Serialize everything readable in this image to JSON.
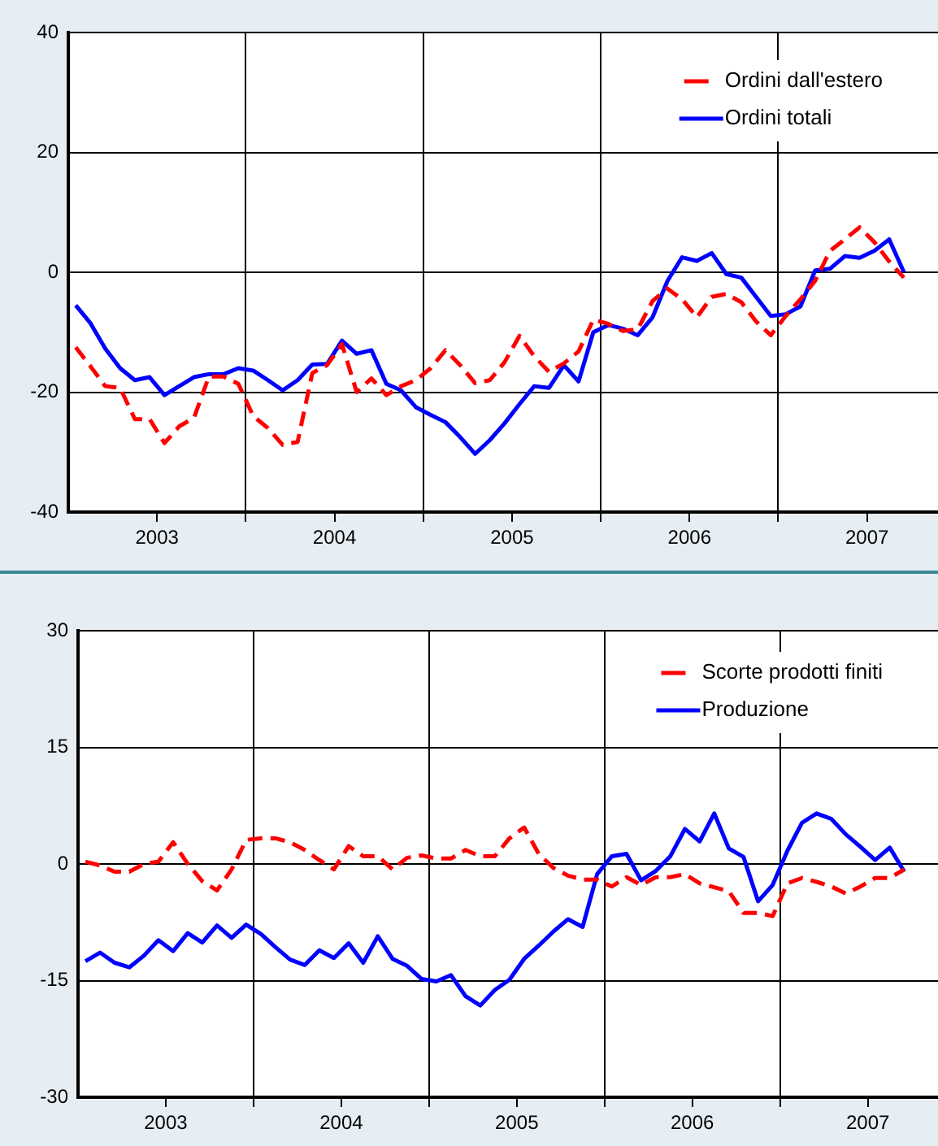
{
  "chart_data": [
    {
      "type": "line",
      "x": [
        2003.042,
        2003.125,
        2003.208,
        2003.292,
        2003.375,
        2003.458,
        2003.542,
        2003.625,
        2003.708,
        2003.792,
        2003.875,
        2003.958,
        2004.042,
        2004.125,
        2004.208,
        2004.292,
        2004.375,
        2004.458,
        2004.542,
        2004.625,
        2004.708,
        2004.792,
        2004.875,
        2004.958,
        2005.042,
        2005.125,
        2005.208,
        2005.292,
        2005.375,
        2005.458,
        2005.542,
        2005.625,
        2005.708,
        2005.792,
        2005.875,
        2005.958,
        2006.042,
        2006.125,
        2006.208,
        2006.292,
        2006.375,
        2006.458,
        2006.542,
        2006.625,
        2006.708,
        2006.792,
        2006.875,
        2006.958,
        2007.042,
        2007.125,
        2007.208,
        2007.292,
        2007.375,
        2007.458,
        2007.542,
        2007.625,
        2007.708
      ],
      "series": [
        {
          "name": "Ordini dall'estero",
          "color": "#ff0000",
          "line_style": "dashed",
          "values": [
            -12.5,
            -15.7,
            -19,
            -19.3,
            -24.5,
            -24.5,
            -28.5,
            -25.7,
            -24.3,
            -17.4,
            -17.4,
            -18.6,
            -24,
            -26,
            -28.8,
            -28.3,
            -16.8,
            -15.5,
            -12,
            -20,
            -17.7,
            -20.5,
            -19,
            -18,
            -16,
            -13,
            -15.5,
            -18.5,
            -18,
            -15,
            -10.6,
            -14,
            -16.6,
            -15.2,
            -13.2,
            -7.9,
            -8.6,
            -9.8,
            -9.5,
            -4.8,
            -2.7,
            -4.5,
            -7.5,
            -4.1,
            -3.6,
            -5,
            -8.2,
            -10.5,
            -7.3,
            -4.5,
            -1.4,
            3.6,
            5.5,
            7.5,
            5,
            1.8,
            -0.9
          ]
        },
        {
          "name": "Ordini totali",
          "color": "#0000ff",
          "line_style": "solid",
          "values": [
            -5.5,
            -8.5,
            -12.7,
            -16,
            -18,
            -17.5,
            -20.5,
            -19,
            -17.5,
            -17,
            -17,
            -16,
            -16.4,
            -18,
            -19.7,
            -18,
            -15.4,
            -15.3,
            -11.4,
            -13.6,
            -13,
            -18.6,
            -19.7,
            -22.5,
            -23.8,
            -25,
            -27.5,
            -30.3,
            -28,
            -25.2,
            -22,
            -19,
            -19.3,
            -15.5,
            -18.2,
            -10,
            -8.8,
            -9.4,
            -10.5,
            -7.5,
            -1.5,
            2.5,
            1.9,
            3.2,
            -0.3,
            -0.9,
            -4.1,
            -7.3,
            -7,
            -5.7,
            0.3,
            0.6,
            2.7,
            2.4,
            3.6,
            5.5,
            0
          ]
        }
      ],
      "xlim": [
        2003,
        2007.9
      ],
      "xticks": [
        {
          "value": 2003.5,
          "label": "2003"
        },
        {
          "value": 2004,
          "label": null
        },
        {
          "value": 2004.5,
          "label": "2004"
        },
        {
          "value": 2005,
          "label": null
        },
        {
          "value": 2005.5,
          "label": "2005"
        },
        {
          "value": 2006,
          "label": null
        },
        {
          "value": 2006.5,
          "label": "2006"
        },
        {
          "value": 2007,
          "label": null
        },
        {
          "value": 2007.5,
          "label": "2007"
        }
      ],
      "ylim": [
        -40,
        40
      ],
      "yticks": [
        -40,
        -20,
        0,
        20,
        40
      ],
      "grid": true,
      "legend": "top right",
      "marker": "none"
    },
    {
      "type": "line",
      "x": [
        2003.042,
        2003.125,
        2003.208,
        2003.292,
        2003.375,
        2003.458,
        2003.542,
        2003.625,
        2003.708,
        2003.792,
        2003.875,
        2003.958,
        2004.042,
        2004.125,
        2004.208,
        2004.292,
        2004.375,
        2004.458,
        2004.542,
        2004.625,
        2004.708,
        2004.792,
        2004.875,
        2004.958,
        2005.042,
        2005.125,
        2005.208,
        2005.292,
        2005.375,
        2005.458,
        2005.542,
        2005.625,
        2005.708,
        2005.792,
        2005.875,
        2005.958,
        2006.042,
        2006.125,
        2006.208,
        2006.292,
        2006.375,
        2006.458,
        2006.542,
        2006.625,
        2006.708,
        2006.792,
        2006.875,
        2006.958,
        2007.042,
        2007.125,
        2007.208,
        2007.292,
        2007.375,
        2007.458,
        2007.542,
        2007.625,
        2007.708
      ],
      "series": [
        {
          "name": "Scorte prodotti finiti",
          "color": "#ff0000",
          "line_style": "dashed",
          "values": [
            0.3,
            -0.2,
            -1,
            -1,
            0,
            0.3,
            2.8,
            0,
            -2.2,
            -3.4,
            -0.7,
            3.1,
            3.3,
            3.3,
            2.8,
            1.8,
            0.5,
            -0.7,
            2.3,
            1,
            1,
            -0.7,
            0.8,
            1.1,
            0.7,
            0.7,
            1.8,
            1,
            1,
            3.3,
            4.7,
            1.3,
            -0.5,
            -1.5,
            -2,
            -2,
            -2.9,
            -1.7,
            -2.7,
            -1.7,
            -1.7,
            -1.3,
            -2.5,
            -3,
            -3.5,
            -6.3,
            -6.3,
            -6.7,
            -2.5,
            -1.8,
            -2.3,
            -2.9,
            -3.8,
            -2.9,
            -1.8,
            -1.8,
            -0.7
          ]
        },
        {
          "name": "Produzione",
          "color": "#0000ff",
          "line_style": "solid",
          "values": [
            -12.5,
            -11.4,
            -12.7,
            -13.3,
            -11.8,
            -9.8,
            -11.2,
            -8.9,
            -10.1,
            -7.9,
            -9.5,
            -7.8,
            -9,
            -10.7,
            -12.3,
            -13,
            -11.1,
            -12.1,
            -10.2,
            -12.7,
            -9.3,
            -12.2,
            -13.1,
            -14.8,
            -15.1,
            -14.3,
            -17,
            -18.2,
            -16.2,
            -14.9,
            -12.2,
            -10.5,
            -8.7,
            -7.1,
            -8.1,
            -1.3,
            1,
            1.3,
            -2.1,
            -0.9,
            1,
            4.5,
            2.9,
            6.5,
            2,
            0.9,
            -4.8,
            -2.7,
            1.7,
            5.3,
            6.5,
            5.8,
            3.8,
            2.2,
            0.5,
            2.1,
            -1
          ]
        }
      ],
      "xlim": [
        2003,
        2007.9
      ],
      "xticks": [
        {
          "value": 2003.5,
          "label": "2003"
        },
        {
          "value": 2004,
          "label": null
        },
        {
          "value": 2004.5,
          "label": "2004"
        },
        {
          "value": 2005,
          "label": null
        },
        {
          "value": 2005.5,
          "label": "2005"
        },
        {
          "value": 2006,
          "label": null
        },
        {
          "value": 2006.5,
          "label": "2006"
        },
        {
          "value": 2007,
          "label": null
        },
        {
          "value": 2007.5,
          "label": "2007"
        }
      ],
      "ylim": [
        -30,
        30
      ],
      "yticks": [
        -30,
        -15,
        0,
        15,
        30
      ],
      "grid": true,
      "legend": "top right",
      "marker": "none"
    }
  ]
}
